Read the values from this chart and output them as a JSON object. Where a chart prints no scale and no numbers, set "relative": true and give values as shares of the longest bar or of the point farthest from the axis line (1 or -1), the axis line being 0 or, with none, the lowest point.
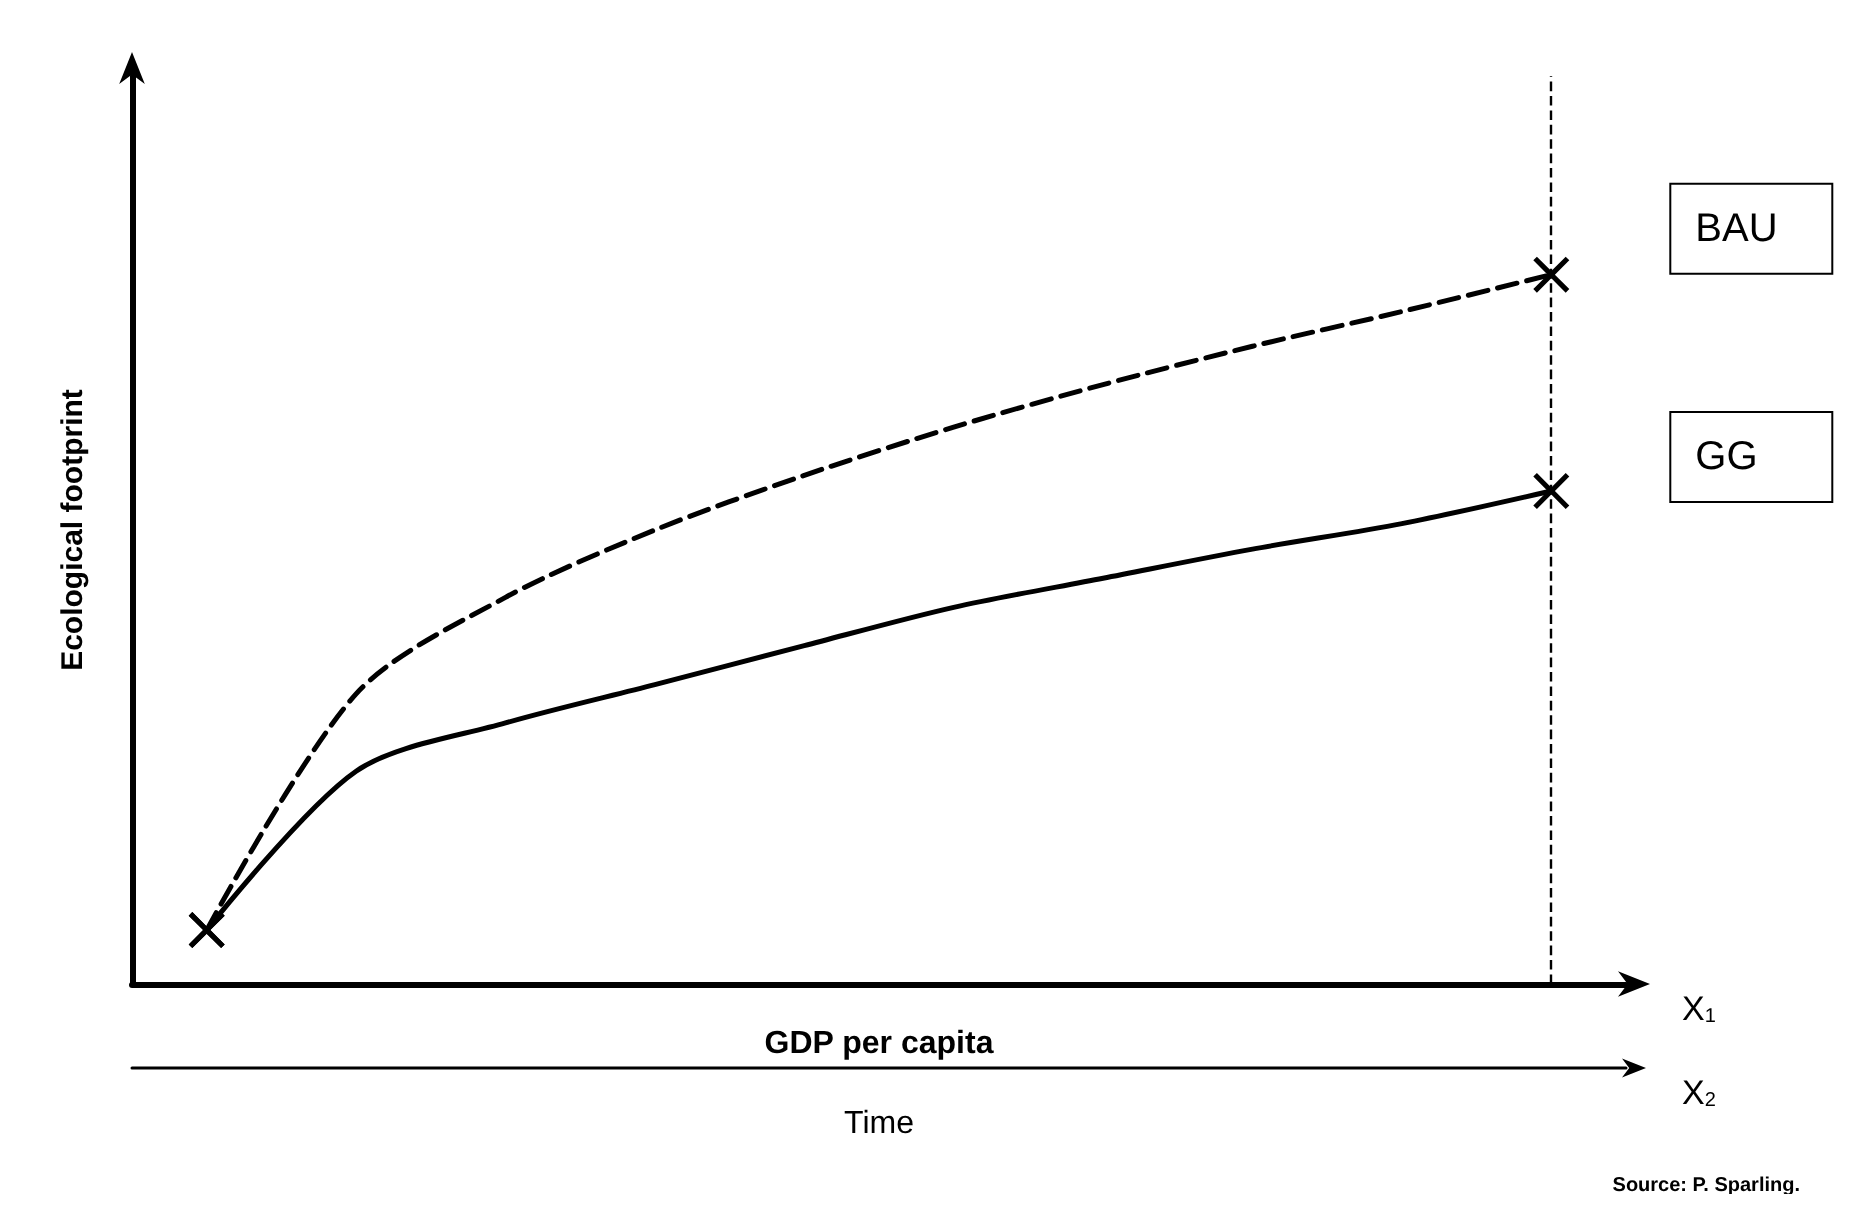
{
  "chart_data": {
    "type": "line",
    "relative": true,
    "xlabel": "GDP per capita",
    "x2label": "Time",
    "ylabel": "Ecological footprint",
    "categories": [
      null,
      null,
      null,
      null,
      null,
      null,
      null,
      null,
      null,
      null
    ],
    "series": [
      {
        "name": "BAU",
        "color": "#000000",
        "line_style": "dashed",
        "values": [
          0.076,
          0.409,
          0.545,
          0.64,
          0.717,
          0.785,
          0.845,
          0.899,
          0.948,
          1
        ]
      },
      {
        "name": "GG",
        "color": "#000000",
        "line_style": "solid",
        "values": [
          0.076,
          0.3,
          0.368,
          0.422,
          0.477,
          0.531,
          0.572,
          0.613,
          0.649,
          0.695
        ]
      }
    ],
    "legend": false,
    "grid": false,
    "annotations": [
      "X$_{1}$",
      "X$_{2}$",
      "Source: P. Sparling."
    ]
  }
}
